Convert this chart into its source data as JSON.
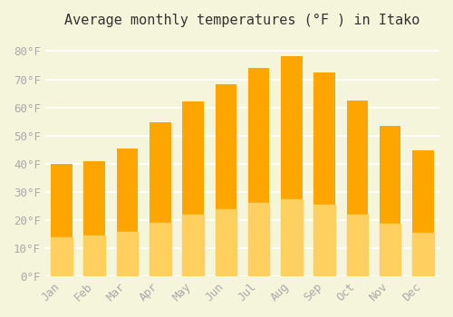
{
  "months": [
    "Jan",
    "Feb",
    "Mar",
    "Apr",
    "May",
    "Jun",
    "Jul",
    "Aug",
    "Sep",
    "Oct",
    "Nov",
    "Dec"
  ],
  "values": [
    39.9,
    41.0,
    45.5,
    54.7,
    62.1,
    68.2,
    74.1,
    78.1,
    72.5,
    62.6,
    53.4,
    44.6
  ],
  "bar_color_top": "#FFA500",
  "bar_color_bottom": "#FFD060",
  "background_color": "#F5F5DC",
  "grid_color": "#FFFFFF",
  "title": "Average monthly temperatures (°F ) in Itako",
  "title_fontsize": 11,
  "tick_label_color": "#AAAAAA",
  "ytick_labels": [
    "0°F",
    "10°F",
    "20°F",
    "30°F",
    "40°F",
    "50°F",
    "60°F",
    "70°F",
    "80°F"
  ],
  "ytick_values": [
    0,
    10,
    20,
    30,
    40,
    50,
    60,
    70,
    80
  ],
  "ylim": [
    0,
    85
  ],
  "tick_fontsize": 9
}
